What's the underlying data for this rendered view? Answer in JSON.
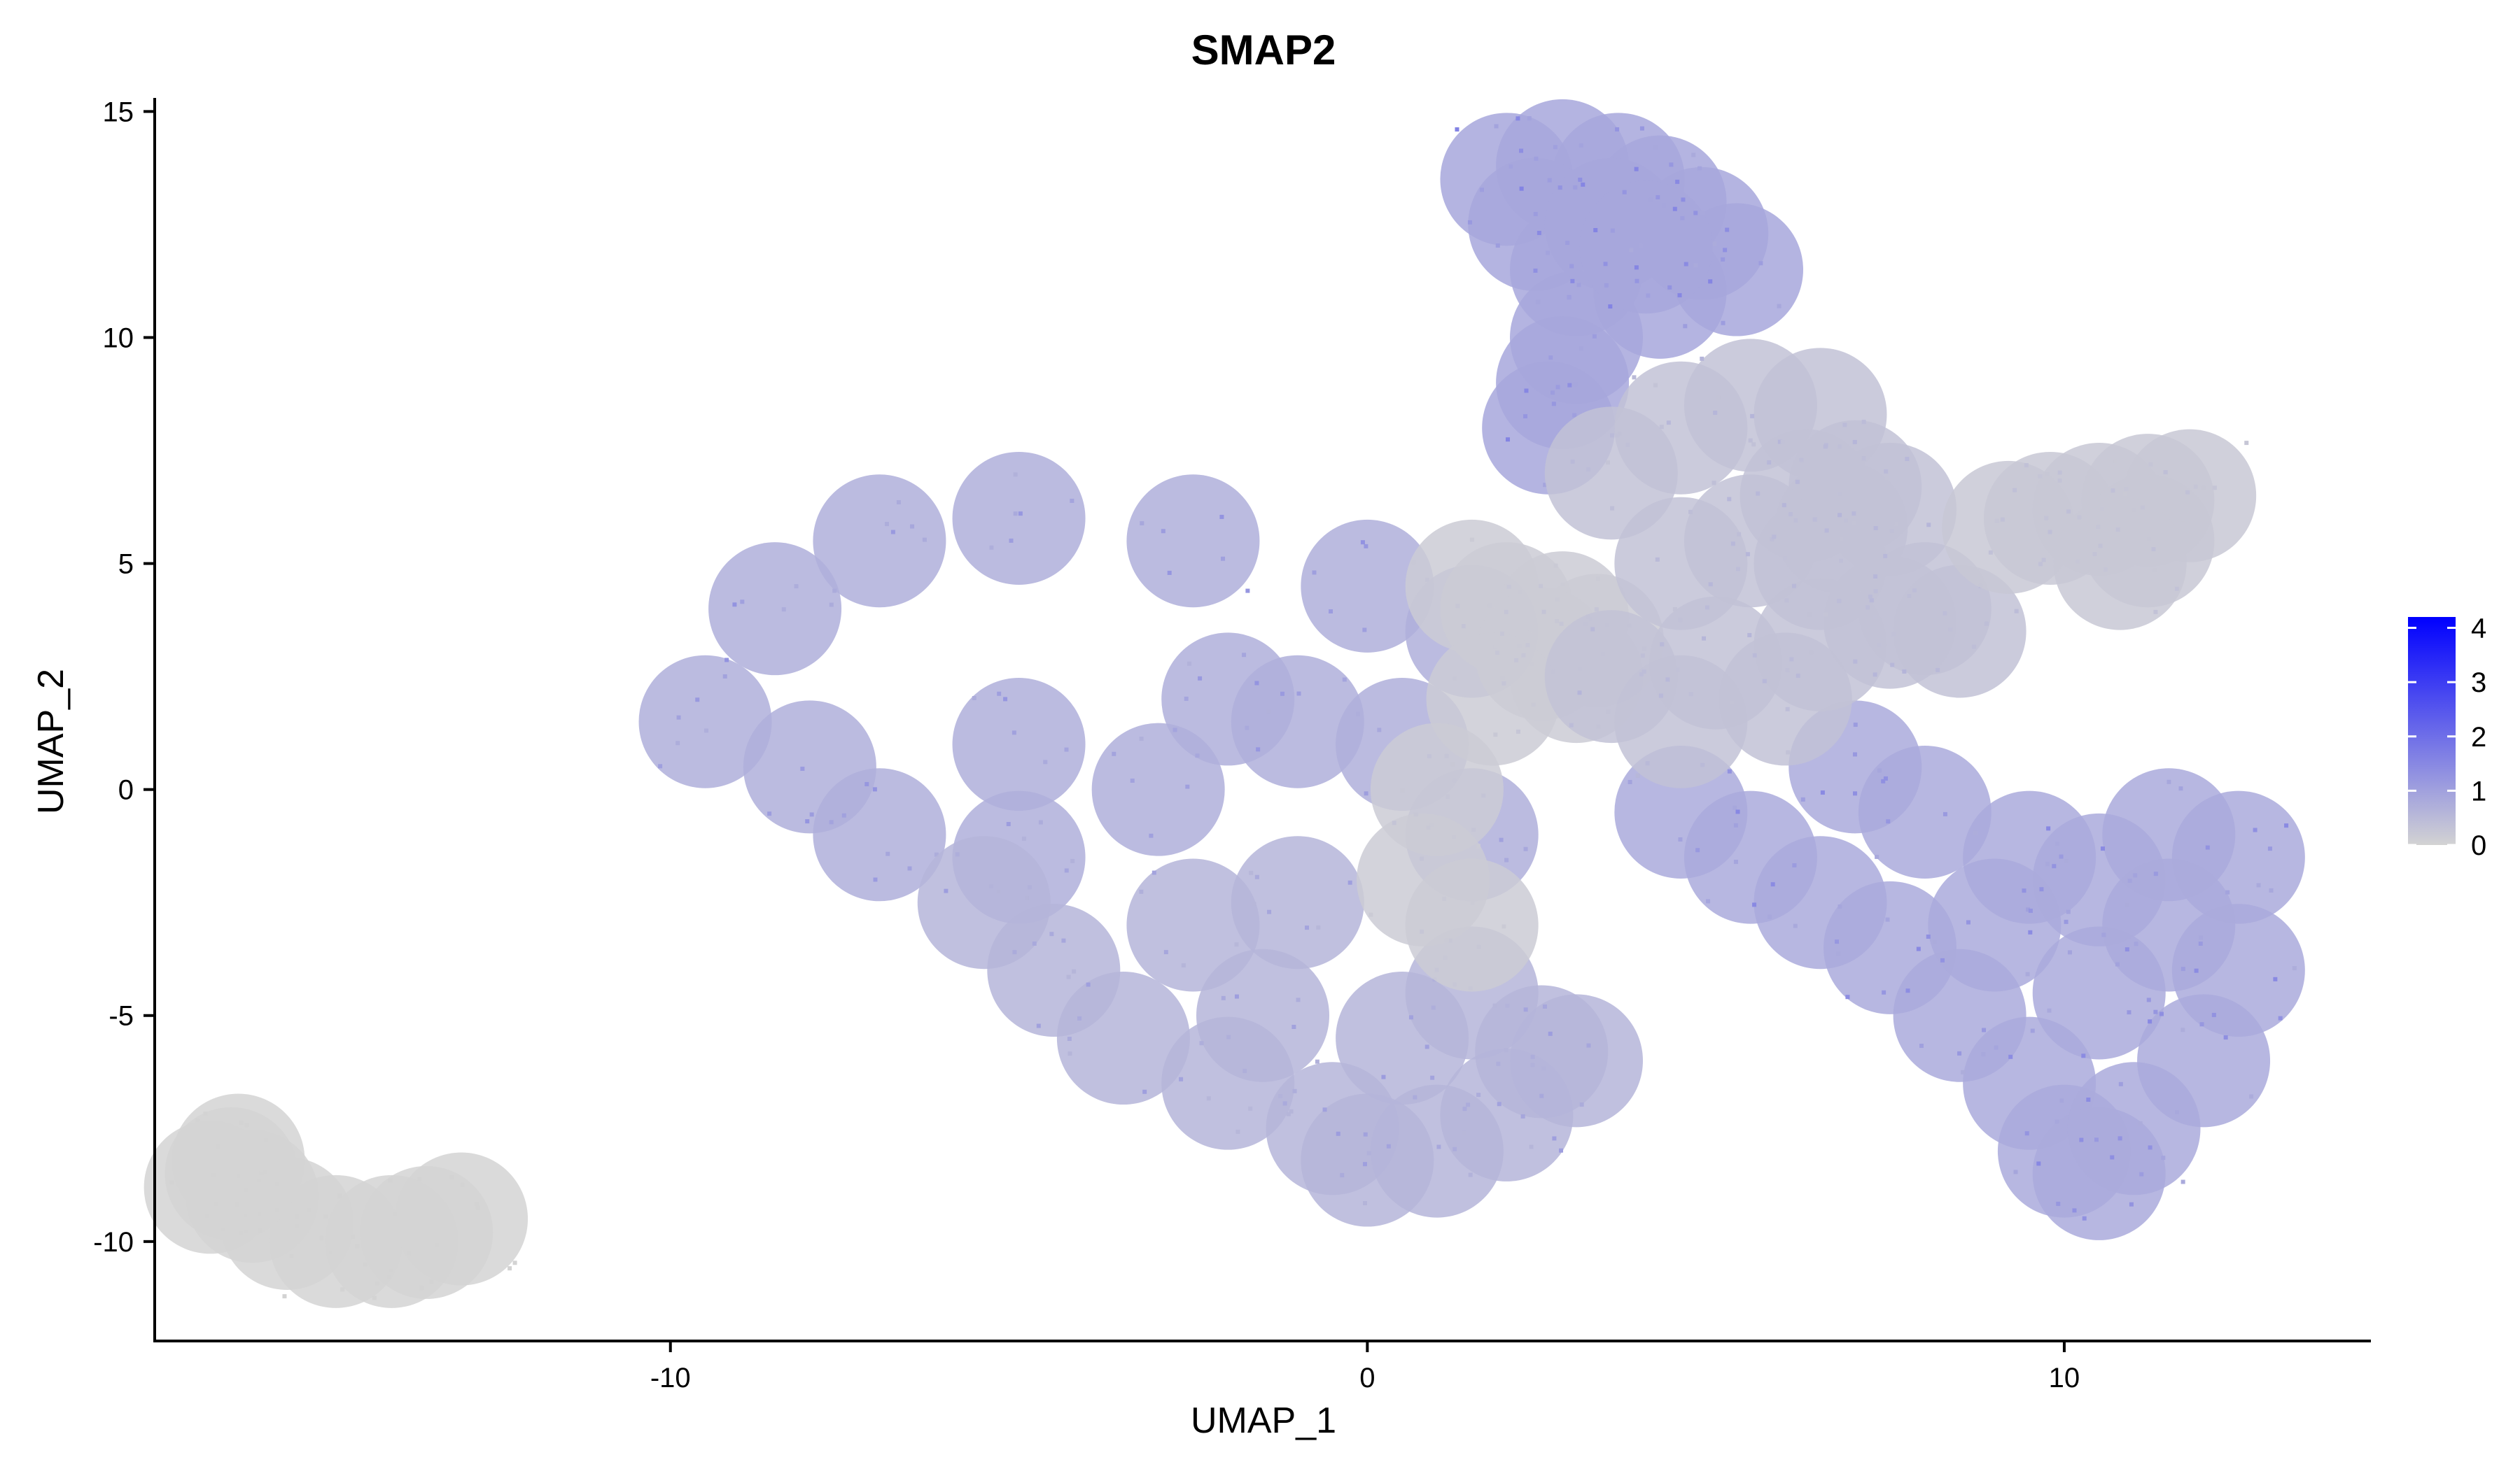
{
  "chart_data": {
    "type": "scatter",
    "title": "SMAP2",
    "xlabel": "UMAP_1",
    "ylabel": "UMAP_2",
    "xlim": [
      -17.4,
      14.4
    ],
    "ylim": [
      -12.2,
      15.3
    ],
    "x_ticks": [
      -10,
      0,
      10
    ],
    "x_tick_labels": [
      "-10",
      "0",
      "10"
    ],
    "y_ticks": [
      -10,
      -5,
      0,
      5,
      10,
      15
    ],
    "y_tick_labels": [
      "-10",
      "-5",
      "0",
      "5",
      "10",
      "15"
    ],
    "grid": false,
    "legend": {
      "placement": "right",
      "type": "colorbar",
      "min": 0,
      "max": 4.2,
      "ticks": [
        0,
        1,
        2,
        3,
        4
      ],
      "tick_labels": [
        "0",
        "1",
        "2",
        "3",
        "4"
      ],
      "low_color": "#d3d3d3",
      "high_color": "#0000ff"
    },
    "point_color_low": "#d3d3d3",
    "point_color_high": "#0000ff",
    "clusters": [
      {
        "region": "main-left-mass",
        "points": [
          [
            -9.5,
            1.5
          ],
          [
            -8.5,
            4
          ],
          [
            -7,
            5.5
          ],
          [
            -5,
            6
          ],
          [
            -2.5,
            5.5
          ],
          [
            0,
            4.5
          ],
          [
            1.5,
            3.5
          ],
          [
            -2,
            2
          ],
          [
            -5,
            1
          ],
          [
            -8,
            0.5
          ],
          [
            -7,
            -1
          ],
          [
            -5,
            -1.5
          ],
          [
            -3,
            0
          ],
          [
            -1,
            1.5
          ],
          [
            0.5,
            1
          ],
          [
            1.5,
            -1
          ]
        ],
        "expression": 1.3
      },
      {
        "region": "lower-left-arm",
        "points": [
          [
            -5.5,
            -2.5
          ],
          [
            -4.5,
            -4
          ],
          [
            -3.5,
            -5.5
          ],
          [
            -2,
            -6.5
          ],
          [
            -0.5,
            -7.5
          ],
          [
            0,
            -8.2
          ],
          [
            1,
            -8
          ],
          [
            2,
            -7.2
          ],
          [
            3,
            -6
          ],
          [
            -2.5,
            -3
          ],
          [
            -1,
            -2.5
          ],
          [
            -1.5,
            -5
          ],
          [
            0.5,
            -5.5
          ],
          [
            1.5,
            -4.5
          ],
          [
            2.5,
            -5.8
          ]
        ],
        "expression": 1.1
      },
      {
        "region": "center-junction",
        "points": [
          [
            1.5,
            4.5
          ],
          [
            2,
            4
          ],
          [
            2.8,
            3.8
          ],
          [
            3.3,
            3.3
          ],
          [
            2.5,
            3
          ],
          [
            3,
            2.5
          ],
          [
            1.8,
            2
          ],
          [
            1,
            0
          ],
          [
            0.8,
            -2
          ],
          [
            1.5,
            -3
          ]
        ],
        "expression": 0.3
      },
      {
        "region": "right-lower-mass",
        "points": [
          [
            4.5,
            -0.5
          ],
          [
            5.5,
            -1.5
          ],
          [
            6.5,
            -2.5
          ],
          [
            7.5,
            -3.5
          ],
          [
            8.5,
            -5
          ],
          [
            9.5,
            -6.5
          ],
          [
            10,
            -8
          ],
          [
            10.5,
            -8.5
          ],
          [
            11,
            -7.5
          ],
          [
            12,
            -6
          ],
          [
            12.5,
            -4
          ],
          [
            12.5,
            -1.5
          ],
          [
            11.5,
            -1
          ],
          [
            10.5,
            -2
          ],
          [
            9.5,
            -1.5
          ],
          [
            8,
            -0.5
          ],
          [
            7,
            0.5
          ],
          [
            9,
            -3
          ],
          [
            10.5,
            -4.5
          ],
          [
            11.5,
            -3
          ]
        ],
        "expression": 1.5
      },
      {
        "region": "right-top-cluster",
        "points": [
          [
            2,
            13.5
          ],
          [
            2.8,
            13.8
          ],
          [
            3.6,
            13.5
          ],
          [
            4.2,
            13
          ],
          [
            4.8,
            12.3
          ],
          [
            5.3,
            11.5
          ],
          [
            4.2,
            11
          ],
          [
            3,
            11.5
          ],
          [
            2.4,
            12.5
          ],
          [
            3,
            10
          ],
          [
            2.8,
            9
          ],
          [
            2.6,
            8
          ],
          [
            3.5,
            12.5
          ],
          [
            4,
            12
          ]
        ],
        "expression": 1.6
      },
      {
        "region": "right-streaks",
        "points": [
          [
            3.5,
            7
          ],
          [
            4.5,
            8
          ],
          [
            5.5,
            8.5
          ],
          [
            6.5,
            8.3
          ],
          [
            6.3,
            6.5
          ],
          [
            7,
            6.7
          ],
          [
            7.5,
            6.2
          ],
          [
            6.8,
            5.8
          ],
          [
            4.5,
            5
          ],
          [
            5.5,
            5.5
          ],
          [
            6.5,
            5
          ],
          [
            3.5,
            2.5
          ],
          [
            5,
            2.8
          ],
          [
            6.5,
            3.2
          ],
          [
            7.5,
            3.7
          ],
          [
            8,
            4
          ],
          [
            8.5,
            3.5
          ],
          [
            4.5,
            1.5
          ],
          [
            6,
            2
          ]
        ],
        "expression": 0.6
      },
      {
        "region": "far-right-streak",
        "points": [
          [
            9.2,
            5.8
          ],
          [
            9.8,
            6
          ],
          [
            10.5,
            6.2
          ],
          [
            11.2,
            6.4
          ],
          [
            11.8,
            6.5
          ],
          [
            11.2,
            5.5
          ],
          [
            10.8,
            5
          ]
        ],
        "expression": 0.4
      },
      {
        "region": "lower-left-arc",
        "points": [
          [
            -16.2,
            -8.2
          ],
          [
            -16,
            -9
          ],
          [
            -15.5,
            -9.6
          ],
          [
            -14.8,
            -10
          ],
          [
            -14,
            -10
          ],
          [
            -13.5,
            -9.8
          ],
          [
            -13,
            -9.5
          ],
          [
            -16.6,
            -8.8
          ],
          [
            -16.3,
            -8.5
          ]
        ],
        "expression": 0.0
      }
    ]
  }
}
